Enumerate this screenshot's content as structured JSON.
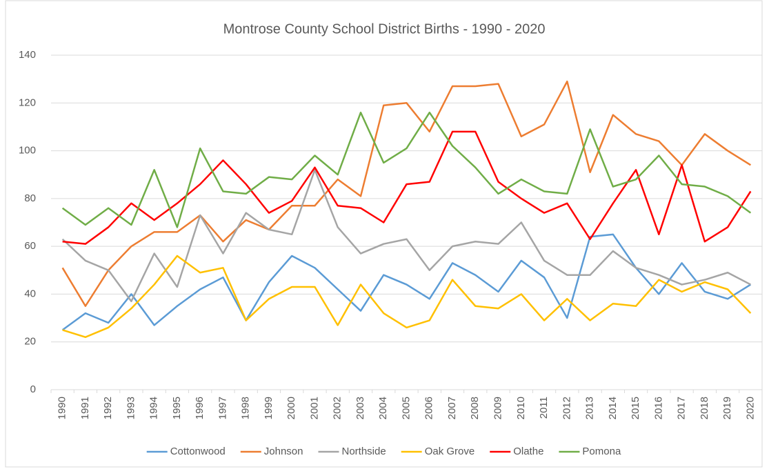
{
  "chart_data": {
    "type": "line",
    "title": "Montrose County School District Births - 1990 - 2020",
    "categories": [
      "1990",
      "1991",
      "1992",
      "1993",
      "1994",
      "1995",
      "1996",
      "1997",
      "1998",
      "1999",
      "2000",
      "2001",
      "2002",
      "2003",
      "2004",
      "2005",
      "2006",
      "2007",
      "2008",
      "2009",
      "2010",
      "2011",
      "2012",
      "2013",
      "2014",
      "2015",
      "2016",
      "2017",
      "2018",
      "2019",
      "2020"
    ],
    "series": [
      {
        "name": "Cottonwood",
        "color": "#5b9bd5",
        "values": [
          25,
          32,
          28,
          40,
          27,
          35,
          42,
          47,
          29,
          45,
          56,
          51,
          42,
          33,
          48,
          44,
          38,
          53,
          48,
          41,
          54,
          47,
          30,
          64,
          65,
          51,
          40,
          53,
          41,
          38,
          44
        ]
      },
      {
        "name": "Johnson",
        "color": "#ed7d31",
        "values": [
          51,
          35,
          50,
          60,
          66,
          66,
          73,
          62,
          71,
          67,
          77,
          77,
          88,
          81,
          119,
          120,
          108,
          127,
          127,
          128,
          106,
          111,
          129,
          91,
          115,
          107,
          104,
          94,
          107,
          100,
          94
        ]
      },
      {
        "name": "Northside",
        "color": "#a5a5a5",
        "values": [
          63,
          54,
          50,
          37,
          57,
          43,
          73,
          57,
          74,
          67,
          65,
          92,
          68,
          57,
          61,
          63,
          50,
          60,
          62,
          61,
          70,
          54,
          48,
          48,
          58,
          51,
          48,
          44,
          46,
          49,
          44
        ]
      },
      {
        "name": "Oak Grove",
        "color": "#ffc000",
        "values": [
          25,
          22,
          26,
          34,
          44,
          56,
          49,
          51,
          29,
          38,
          43,
          43,
          27,
          44,
          32,
          26,
          29,
          46,
          35,
          34,
          40,
          29,
          38,
          29,
          36,
          35,
          46,
          41,
          45,
          42,
          32
        ]
      },
      {
        "name": "Olathe",
        "color": "#ff0000",
        "values": [
          62,
          61,
          68,
          78,
          71,
          78,
          86,
          96,
          86,
          74,
          79,
          93,
          77,
          76,
          70,
          86,
          87,
          108,
          108,
          87,
          80,
          74,
          78,
          63,
          78,
          92,
          65,
          94,
          62,
          68,
          83
        ]
      },
      {
        "name": "Pomona",
        "color": "#70ad47",
        "values": [
          76,
          69,
          76,
          69,
          92,
          68,
          101,
          83,
          82,
          89,
          88,
          98,
          90,
          116,
          95,
          101,
          116,
          102,
          93,
          82,
          88,
          83,
          82,
          109,
          85,
          88,
          98,
          86,
          85,
          81,
          74
        ]
      }
    ],
    "ylim": [
      0,
      140
    ],
    "yticks": [
      0,
      20,
      40,
      60,
      80,
      100,
      120,
      140
    ],
    "grid": true,
    "legend": "bottom"
  }
}
